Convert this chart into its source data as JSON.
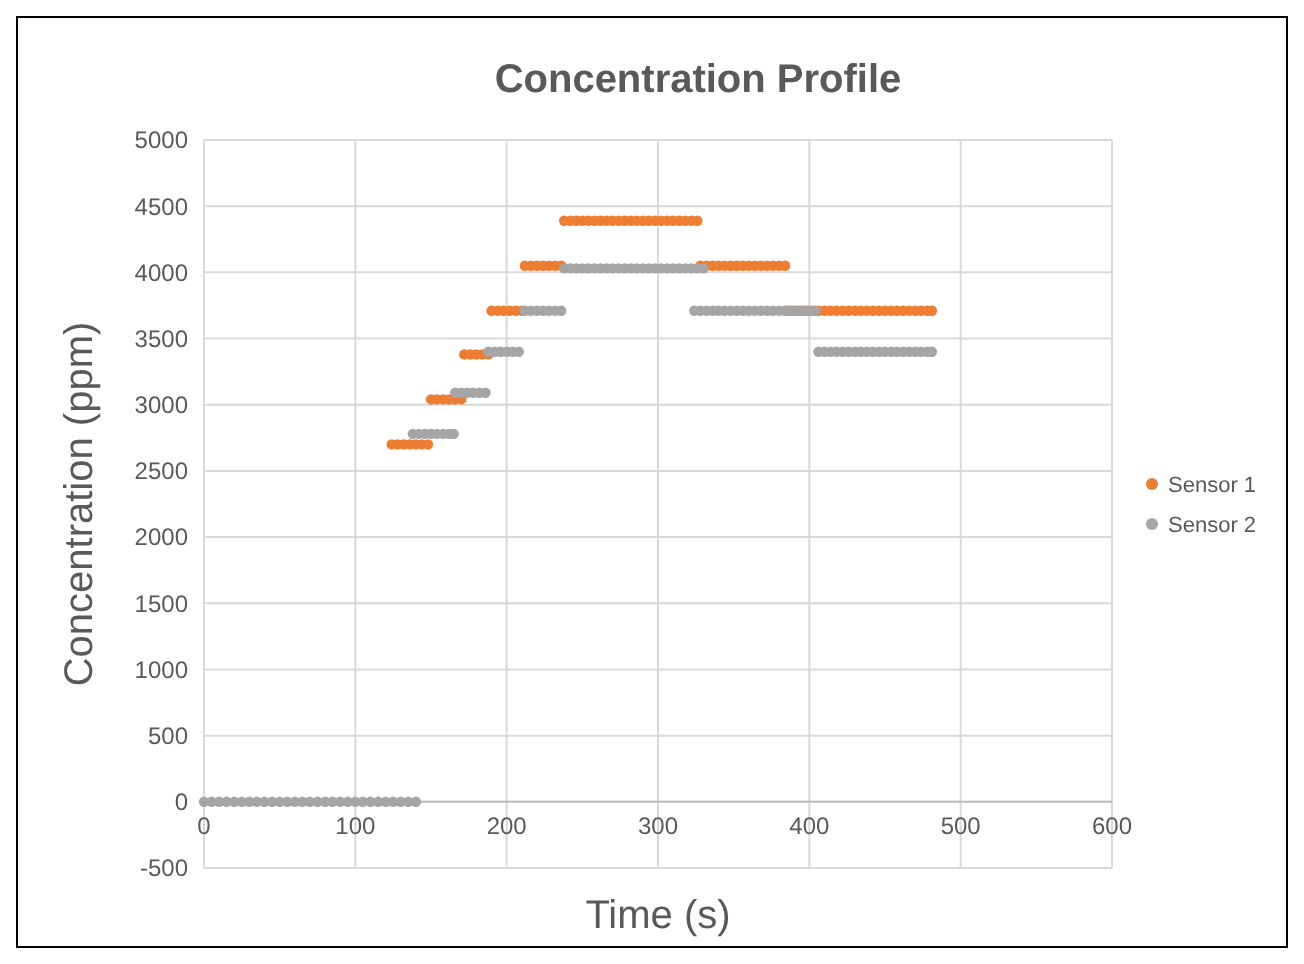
{
  "chart_data": {
    "type": "scatter",
    "title": "Concentration Profile",
    "xlabel": "Time (s)",
    "ylabel": "Concentration (ppm)",
    "xlim": [
      0,
      600
    ],
    "xticks": [
      0,
      100,
      200,
      300,
      400,
      500,
      600
    ],
    "ylim": [
      -500,
      5000
    ],
    "yticks": [
      -500,
      0,
      500,
      1000,
      1500,
      2000,
      2500,
      3000,
      3500,
      4000,
      4500,
      5000
    ],
    "grid": true,
    "legend": "right",
    "marker": "circle",
    "series": [
      {
        "name": "Sensor 1",
        "color": "#ed7d31",
        "x": [
          124,
          128,
          132,
          136,
          140,
          144,
          148,
          150,
          154,
          158,
          162,
          166,
          170,
          172,
          176,
          180,
          184,
          188,
          190,
          194,
          198,
          202,
          206,
          210,
          212,
          216,
          220,
          224,
          228,
          232,
          236,
          238,
          242,
          246,
          250,
          254,
          258,
          262,
          266,
          270,
          274,
          278,
          282,
          286,
          290,
          294,
          298,
          302,
          306,
          310,
          314,
          318,
          322,
          326,
          328,
          332,
          336,
          340,
          344,
          348,
          352,
          356,
          360,
          364,
          368,
          372,
          376,
          380,
          384,
          386,
          390,
          394,
          398,
          402,
          406,
          410,
          414,
          418,
          422,
          426,
          430,
          434,
          438,
          442,
          446,
          450,
          454,
          458,
          462,
          466,
          470,
          474,
          478,
          481
        ],
        "values": [
          2700,
          2700,
          2700,
          2700,
          2700,
          2700,
          2700,
          3040,
          3040,
          3040,
          3040,
          3040,
          3040,
          3380,
          3380,
          3380,
          3380,
          3380,
          3710,
          3710,
          3710,
          3710,
          3710,
          3710,
          4050,
          4050,
          4050,
          4050,
          4050,
          4050,
          4050,
          4390,
          4390,
          4390,
          4390,
          4390,
          4390,
          4390,
          4390,
          4390,
          4390,
          4390,
          4390,
          4390,
          4390,
          4390,
          4390,
          4390,
          4390,
          4390,
          4390,
          4390,
          4390,
          4390,
          4050,
          4050,
          4050,
          4050,
          4050,
          4050,
          4050,
          4050,
          4050,
          4050,
          4050,
          4050,
          4050,
          4050,
          4050,
          3710,
          3710,
          3710,
          3710,
          3710,
          3710,
          3710,
          3710,
          3710,
          3710,
          3710,
          3710,
          3710,
          3710,
          3710,
          3710,
          3710,
          3710,
          3710,
          3710,
          3710,
          3710,
          3710,
          3710,
          3710
        ]
      },
      {
        "name": "Sensor 2",
        "color": "#a5a5a5",
        "x": [
          0,
          5,
          10,
          15,
          20,
          25,
          30,
          35,
          40,
          45,
          50,
          55,
          60,
          65,
          70,
          75,
          80,
          85,
          90,
          95,
          100,
          105,
          110,
          115,
          120,
          125,
          130,
          135,
          140,
          138,
          142,
          146,
          150,
          154,
          158,
          162,
          165,
          166,
          170,
          174,
          178,
          182,
          186,
          188,
          192,
          196,
          200,
          204,
          208,
          212,
          216,
          220,
          224,
          228,
          232,
          236,
          238,
          242,
          246,
          250,
          254,
          258,
          262,
          266,
          270,
          274,
          278,
          282,
          286,
          290,
          294,
          298,
          302,
          306,
          310,
          314,
          318,
          322,
          326,
          330,
          324,
          328,
          332,
          336,
          340,
          344,
          348,
          352,
          356,
          360,
          364,
          368,
          372,
          376,
          380,
          384,
          388,
          392,
          396,
          400,
          404,
          406,
          410,
          414,
          418,
          422,
          426,
          430,
          434,
          438,
          442,
          446,
          450,
          454,
          458,
          462,
          466,
          470,
          474,
          478,
          481
        ],
        "values": [
          0,
          0,
          0,
          0,
          0,
          0,
          0,
          0,
          0,
          0,
          0,
          0,
          0,
          0,
          0,
          0,
          0,
          0,
          0,
          0,
          0,
          0,
          0,
          0,
          0,
          0,
          0,
          0,
          0,
          2780,
          2780,
          2780,
          2780,
          2780,
          2780,
          2780,
          2780,
          3090,
          3090,
          3090,
          3090,
          3090,
          3090,
          3400,
          3400,
          3400,
          3400,
          3400,
          3400,
          3710,
          3710,
          3710,
          3710,
          3710,
          3710,
          3710,
          4030,
          4030,
          4030,
          4030,
          4030,
          4030,
          4030,
          4030,
          4030,
          4030,
          4030,
          4030,
          4030,
          4030,
          4030,
          4030,
          4030,
          4030,
          4030,
          4030,
          4030,
          4030,
          4030,
          4030,
          3710,
          3710,
          3710,
          3710,
          3710,
          3710,
          3710,
          3710,
          3710,
          3710,
          3710,
          3710,
          3710,
          3710,
          3710,
          3710,
          3710,
          3710,
          3710,
          3710,
          3710,
          3400,
          3400,
          3400,
          3400,
          3400,
          3400,
          3400,
          3400,
          3400,
          3400,
          3400,
          3400,
          3400,
          3400,
          3400,
          3400,
          3400,
          3400,
          3400,
          3400
        ]
      }
    ]
  }
}
